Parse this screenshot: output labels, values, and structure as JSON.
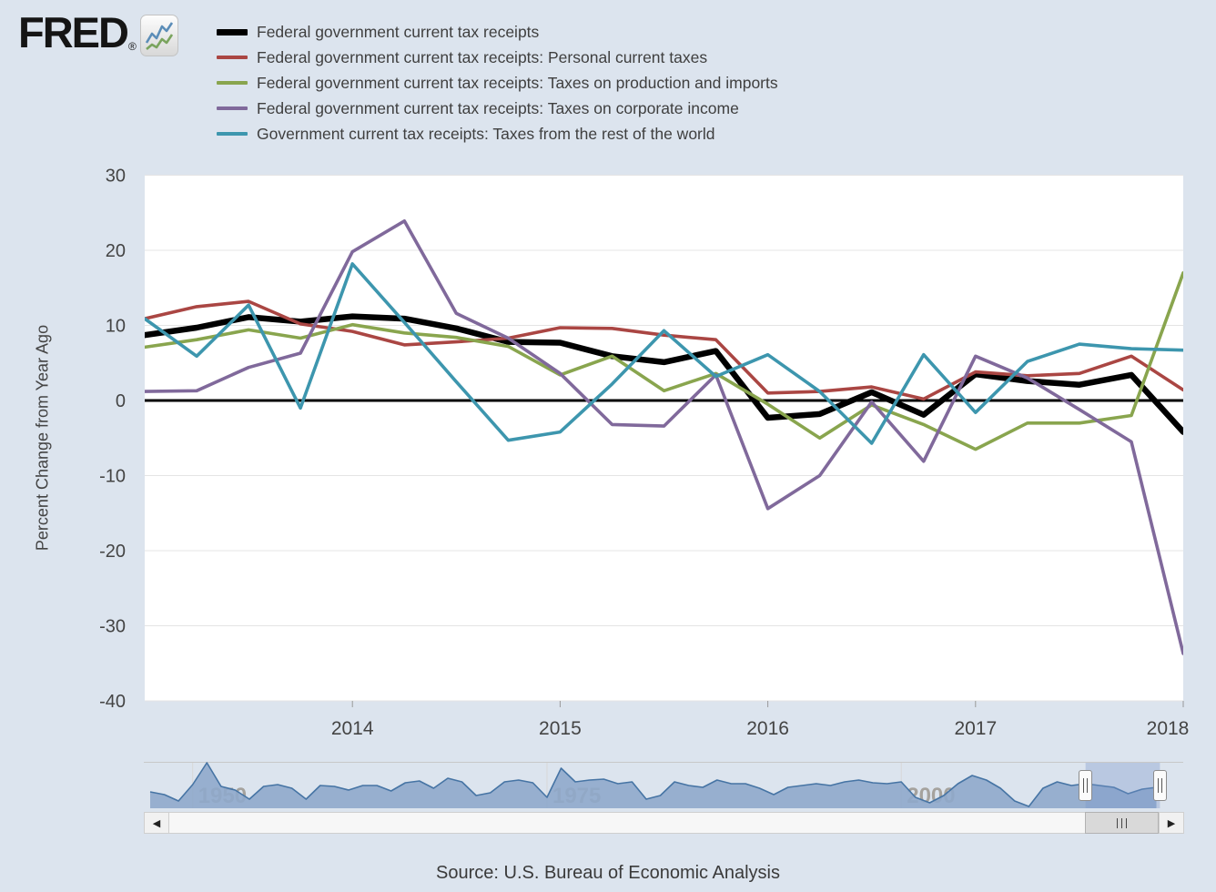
{
  "header": {
    "logo_text": "FRED",
    "registered_mark": "®"
  },
  "legend": {
    "items": [
      {
        "label": "Federal government current tax receipts",
        "color": "#000000",
        "swatch_thick": true
      },
      {
        "label": "Federal government current tax receipts: Personal current taxes",
        "color": "#aa4643",
        "swatch_thick": false
      },
      {
        "label": "Federal government current tax receipts: Taxes on production and imports",
        "color": "#89a54e",
        "swatch_thick": false
      },
      {
        "label": "Federal government current tax receipts: Taxes on corporate income",
        "color": "#80699b",
        "swatch_thick": false
      },
      {
        "label": "Government current tax receipts: Taxes from the rest of the world",
        "color": "#3d96ae",
        "swatch_thick": false
      }
    ]
  },
  "chart_data": {
    "type": "line",
    "title": "",
    "ylabel": "Percent Change from Year Ago",
    "ylim": [
      -40,
      30
    ],
    "yticks": [
      30,
      20,
      10,
      0,
      -10,
      -20,
      -30,
      -40
    ],
    "grid": "horizontal",
    "legend_position": "top-left",
    "x_quarters": [
      "2013 Q1",
      "2013 Q2",
      "2013 Q3",
      "2013 Q4",
      "2014 Q1",
      "2014 Q2",
      "2014 Q3",
      "2014 Q4",
      "2015 Q1",
      "2015 Q2",
      "2015 Q3",
      "2015 Q4",
      "2016 Q1",
      "2016 Q2",
      "2016 Q3",
      "2016 Q4",
      "2017 Q1",
      "2017 Q2",
      "2017 Q3",
      "2017 Q4",
      "2018 Q1"
    ],
    "xticks": [
      {
        "label": "2014",
        "q_index": 4
      },
      {
        "label": "2015",
        "q_index": 8
      },
      {
        "label": "2016",
        "q_index": 12
      },
      {
        "label": "2017",
        "q_index": 16
      },
      {
        "label": "2018",
        "q_index": 20
      }
    ],
    "series": [
      {
        "name": "Federal government current tax receipts",
        "color": "#000000",
        "width": 6.5,
        "values": [
          8.7,
          9.7,
          11.1,
          10.5,
          11.2,
          10.9,
          9.6,
          7.8,
          7.7,
          5.9,
          5.1,
          6.6,
          -2.3,
          -1.8,
          1.1,
          -1.9,
          3.5,
          2.6,
          2.1,
          3.4,
          -4.2
        ]
      },
      {
        "name": "Federal government current tax receipts: Personal current taxes",
        "color": "#aa4643",
        "width": 3.6,
        "values": [
          10.9,
          12.5,
          13.2,
          10.2,
          9.2,
          7.4,
          7.8,
          8.3,
          9.7,
          9.6,
          8.7,
          8.1,
          1.0,
          1.2,
          1.8,
          0.2,
          3.8,
          3.3,
          3.6,
          5.9,
          1.4
        ]
      },
      {
        "name": "Federal government current tax receipts: Taxes on production and imports",
        "color": "#89a54e",
        "width": 3.6,
        "values": [
          7.1,
          8.1,
          9.4,
          8.3,
          10.1,
          9.0,
          8.4,
          7.2,
          3.4,
          5.9,
          1.3,
          3.6,
          -0.5,
          -5.0,
          -0.6,
          -3.2,
          -6.5,
          -3.0,
          -3.0,
          -2.0,
          17.0
        ]
      },
      {
        "name": "Federal government current tax receipts: Taxes on corporate income",
        "color": "#80699b",
        "width": 3.6,
        "values": [
          1.2,
          1.3,
          4.4,
          6.3,
          19.8,
          23.9,
          11.6,
          8.3,
          3.6,
          -3.2,
          -3.4,
          3.4,
          -14.4,
          -10.0,
          -0.2,
          -8.1,
          5.9,
          3.0,
          -1.2,
          -5.5,
          -33.7
        ]
      },
      {
        "name": "Government current tax receipts: Taxes from the rest of the world",
        "color": "#3d96ae",
        "width": 3.6,
        "values": [
          10.9,
          5.9,
          12.7,
          -1.0,
          18.2,
          10.4,
          2.5,
          -5.3,
          -4.2,
          2.2,
          9.3,
          3.2,
          6.1,
          1.2,
          -5.7,
          6.1,
          -1.6,
          5.2,
          7.5,
          6.9,
          6.7
        ]
      }
    ]
  },
  "mini_chart": {
    "type": "area",
    "start_year": 1947,
    "end_year": 2018,
    "tick_labels": [
      {
        "label": "1950",
        "year": 1950
      },
      {
        "label": "1975",
        "year": 1975
      },
      {
        "label": "2000",
        "year": 2000
      }
    ],
    "profile_heights": [
      18,
      15,
      8,
      26,
      50,
      24,
      20,
      10,
      24,
      26,
      22,
      10,
      25,
      24,
      20,
      25,
      25,
      19,
      28,
      30,
      22,
      33,
      29,
      14,
      17,
      29,
      31,
      28,
      12,
      44,
      29,
      31,
      32,
      27,
      29,
      10,
      14,
      29,
      25,
      23,
      31,
      27,
      27,
      22,
      15,
      23,
      25,
      27,
      25,
      29,
      31,
      28,
      27,
      29,
      12,
      6,
      14,
      27,
      36,
      31,
      22,
      8,
      2,
      22,
      29,
      25,
      27,
      25,
      23,
      16,
      21,
      23
    ],
    "selection": {
      "start_year": 2013.0,
      "end_year": 2018.25
    },
    "fill_color": "#8fa9cb",
    "line_color": "#4674a4",
    "label_color": "#a5a29d",
    "selection_color": "rgba(120,150,200,0.35)"
  },
  "icons": {
    "scroll_left": "◀",
    "scroll_right": "▶"
  },
  "footer": {
    "source": "Source: U.S. Bureau of Economic Analysis"
  }
}
